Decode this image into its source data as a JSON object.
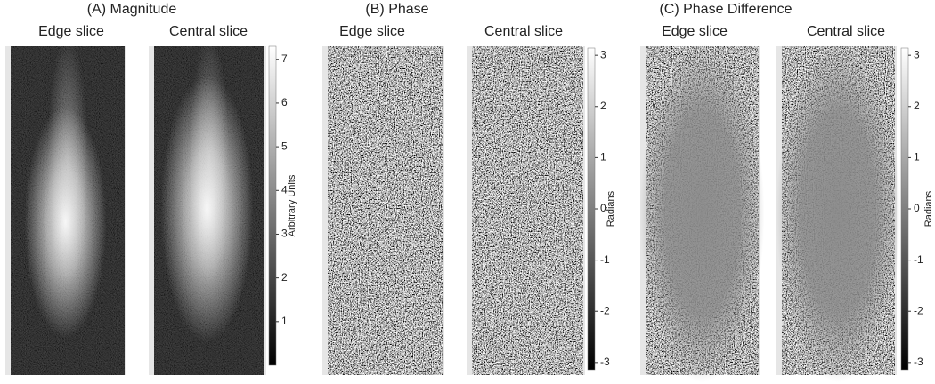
{
  "panels": [
    {
      "title": "(A) Magnitude",
      "slices": [
        "Edge slice",
        "Central slice"
      ],
      "colorbar": {
        "label": "Arbitrary Units",
        "lim": [
          0,
          7.3
        ],
        "ticks": [
          1,
          2,
          3,
          4,
          5,
          6,
          7
        ]
      }
    },
    {
      "title": "(B)  Phase",
      "slices": [
        "Edge slice",
        "Central slice"
      ],
      "colorbar": {
        "label": "Radians",
        "lim": [
          -3.1416,
          3.1416
        ],
        "ticks": [
          -3,
          -2,
          -1,
          0,
          1,
          2,
          3
        ]
      }
    },
    {
      "title": "(C) Phase Difference",
      "slices": [
        "Edge slice",
        "Central slice"
      ],
      "colorbar": {
        "label": "Radians",
        "lim": [
          -3.1416,
          3.1416
        ],
        "ticks": [
          -3,
          -2,
          -1,
          0,
          1,
          2,
          3
        ]
      }
    }
  ]
}
